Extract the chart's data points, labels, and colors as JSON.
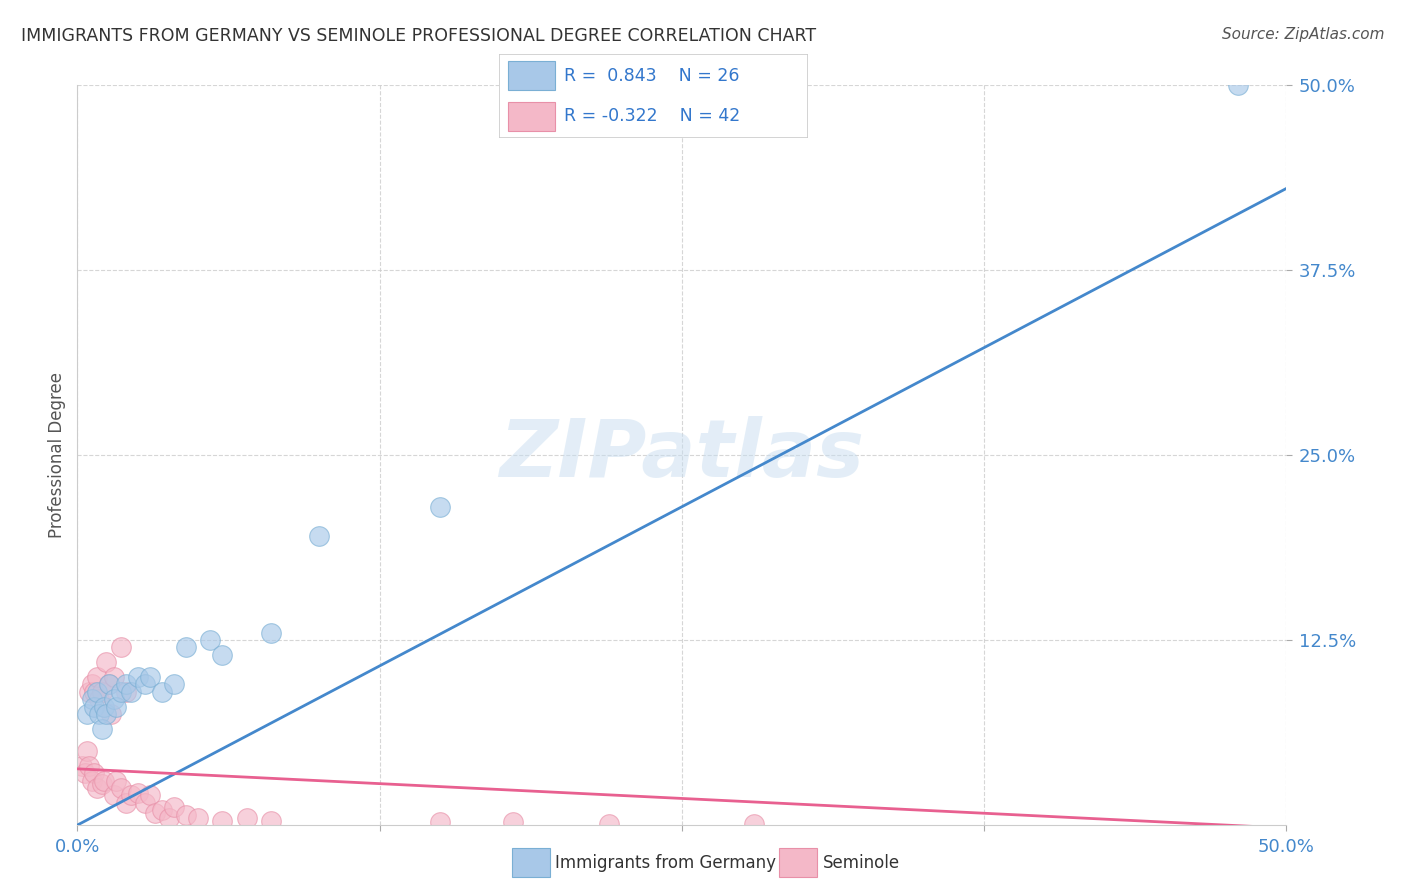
{
  "title": "IMMIGRANTS FROM GERMANY VS SEMINOLE PROFESSIONAL DEGREE CORRELATION CHART",
  "source": "Source: ZipAtlas.com",
  "ylabel": "Professional Degree",
  "xlim": [
    0.0,
    0.5
  ],
  "ylim": [
    0.0,
    0.5
  ],
  "ytick_labels": [
    "12.5%",
    "25.0%",
    "37.5%",
    "50.0%"
  ],
  "ytick_positions": [
    0.125,
    0.25,
    0.375,
    0.5
  ],
  "xtick_positions": [
    0.0,
    0.125,
    0.25,
    0.375,
    0.5
  ],
  "watermark_text": "ZIPatlas",
  "blue_color": "#a8c8e8",
  "blue_edge_color": "#7aafd4",
  "pink_color": "#f4b8c8",
  "pink_edge_color": "#e890a8",
  "blue_line_color": "#4488cc",
  "pink_line_color": "#e86090",
  "tick_color": "#4488cc",
  "background_color": "#ffffff",
  "grid_color": "#cccccc",
  "germany_x": [
    0.004,
    0.006,
    0.007,
    0.008,
    0.009,
    0.01,
    0.011,
    0.012,
    0.013,
    0.015,
    0.016,
    0.018,
    0.02,
    0.022,
    0.025,
    0.028,
    0.03,
    0.035,
    0.04,
    0.045,
    0.055,
    0.06,
    0.08,
    0.1,
    0.15,
    0.48
  ],
  "germany_y": [
    0.075,
    0.085,
    0.08,
    0.09,
    0.075,
    0.065,
    0.08,
    0.075,
    0.095,
    0.085,
    0.08,
    0.09,
    0.095,
    0.09,
    0.1,
    0.095,
    0.1,
    0.09,
    0.095,
    0.12,
    0.125,
    0.115,
    0.13,
    0.195,
    0.215,
    0.5
  ],
  "seminole_x": [
    0.002,
    0.003,
    0.004,
    0.005,
    0.005,
    0.006,
    0.006,
    0.007,
    0.007,
    0.008,
    0.008,
    0.009,
    0.01,
    0.01,
    0.011,
    0.012,
    0.013,
    0.014,
    0.015,
    0.015,
    0.016,
    0.018,
    0.018,
    0.02,
    0.02,
    0.022,
    0.025,
    0.028,
    0.03,
    0.032,
    0.035,
    0.038,
    0.04,
    0.045,
    0.05,
    0.06,
    0.07,
    0.08,
    0.15,
    0.18,
    0.22,
    0.28
  ],
  "seminole_y": [
    0.04,
    0.035,
    0.05,
    0.04,
    0.09,
    0.03,
    0.095,
    0.035,
    0.09,
    0.025,
    0.1,
    0.085,
    0.028,
    0.09,
    0.03,
    0.11,
    0.095,
    0.075,
    0.02,
    0.1,
    0.03,
    0.12,
    0.025,
    0.015,
    0.09,
    0.02,
    0.022,
    0.015,
    0.02,
    0.008,
    0.01,
    0.005,
    0.012,
    0.007,
    0.005,
    0.003,
    0.005,
    0.003,
    0.002,
    0.002,
    0.001,
    0.001
  ],
  "blue_line_x": [
    0.0,
    0.5
  ],
  "blue_line_y": [
    0.0,
    0.43
  ],
  "pink_line_x": [
    0.0,
    0.5
  ],
  "pink_line_y": [
    0.038,
    -0.002
  ]
}
